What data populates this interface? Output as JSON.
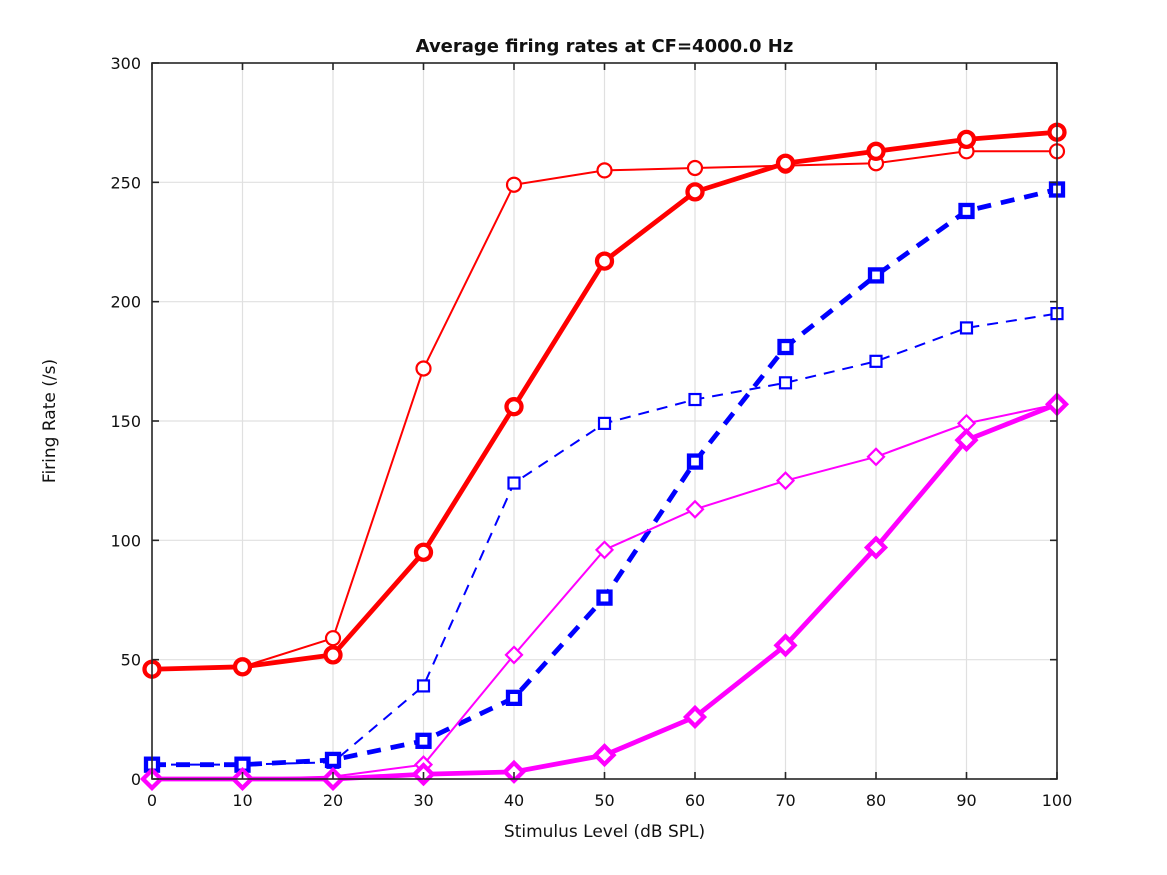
{
  "colors": {
    "red": "#ff0000",
    "blue": "#0000ff",
    "magenta": "#ff00ff",
    "grid": "#e0e0e0",
    "axis": "#262626",
    "text": "#111111",
    "background": "#ffffff"
  },
  "chart_data": {
    "type": "line",
    "title": "Average firing rates at CF=4000.0 Hz",
    "xlabel": "Stimulus Level (dB SPL)",
    "ylabel": "Firing Rate (/s)",
    "xlim": [
      0,
      100
    ],
    "ylim": [
      0,
      300
    ],
    "xticks": [
      0,
      10,
      20,
      30,
      40,
      50,
      60,
      70,
      80,
      90,
      100
    ],
    "yticks": [
      0,
      50,
      100,
      150,
      200,
      250,
      300
    ],
    "grid": true,
    "legend": "none",
    "x": [
      0,
      10,
      20,
      30,
      40,
      50,
      60,
      70,
      80,
      90,
      100
    ],
    "series": [
      {
        "name": "red-thin-open-circle",
        "color": "#ff0000",
        "line": "solid",
        "thickness": "thin",
        "width": 2,
        "marker": "circle",
        "values": [
          46,
          47,
          59,
          172,
          249,
          255,
          256,
          257,
          258,
          263,
          263
        ]
      },
      {
        "name": "red-thick-circle",
        "color": "#ff0000",
        "line": "solid",
        "thickness": "thick",
        "width": 4.8,
        "marker": "circle",
        "values": [
          46,
          47,
          52,
          95,
          156,
          217,
          246,
          258,
          263,
          268,
          271
        ]
      },
      {
        "name": "blue-thin-dashed-open-square",
        "color": "#0000ff",
        "line": "dashed",
        "thickness": "thin",
        "width": 2,
        "marker": "square",
        "values": [
          6,
          6,
          7,
          39,
          124,
          149,
          159,
          166,
          175,
          189,
          195
        ]
      },
      {
        "name": "blue-thick-dashed-square",
        "color": "#0000ff",
        "line": "dashed",
        "thickness": "thick",
        "width": 4.8,
        "marker": "square",
        "values": [
          6,
          6,
          8,
          16,
          34,
          76,
          133,
          181,
          211,
          238,
          247
        ]
      },
      {
        "name": "magenta-thin-open-diamond",
        "color": "#ff00ff",
        "line": "solid",
        "thickness": "thin",
        "width": 2,
        "marker": "diamond",
        "values": [
          0,
          0,
          1,
          6,
          52,
          96,
          113,
          125,
          135,
          149,
          157
        ]
      },
      {
        "name": "magenta-thick-diamond",
        "color": "#ff00ff",
        "line": "solid",
        "thickness": "thick",
        "width": 4.8,
        "marker": "diamond",
        "values": [
          0,
          0,
          0,
          2,
          3,
          10,
          26,
          56,
          97,
          142,
          157
        ]
      }
    ]
  }
}
